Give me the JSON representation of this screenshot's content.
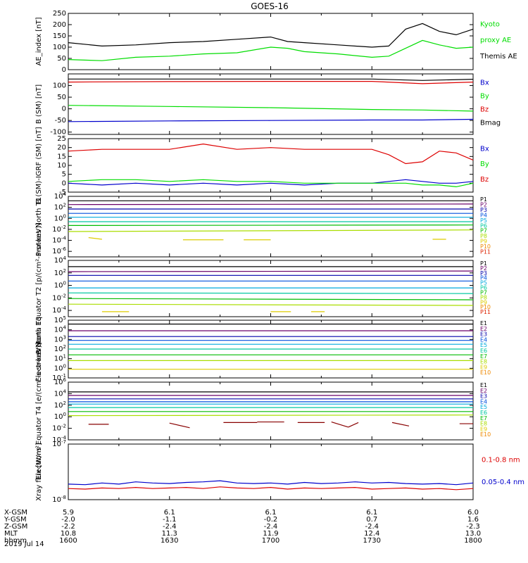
{
  "title": "GOES-16",
  "date_label": "2019 Jul 14",
  "footer": {
    "row_labels": [
      "X-GSM",
      "Y-GSM",
      "Z-GSM",
      "MLT",
      "hhmm"
    ],
    "columns": [
      {
        "X-GSM": "5.9",
        "Y-GSM": "-2.0",
        "Z-GSM": "-2.2",
        "MLT": "10.8",
        "hhmm": "1600"
      },
      {
        "X-GSM": "6.1",
        "Y-GSM": "-1.1",
        "Z-GSM": "-2.4",
        "MLT": "11.3",
        "hhmm": "1630"
      },
      {
        "X-GSM": "6.1",
        "Y-GSM": "-0.2",
        "Z-GSM": "-2.4",
        "MLT": "11.9",
        "hhmm": "1700"
      },
      {
        "X-GSM": "6.1",
        "Y-GSM": "0.7",
        "Z-GSM": "-2.4",
        "MLT": "12.4",
        "hhmm": "1730"
      },
      {
        "X-GSM": "6.0",
        "Y-GSM": "1.6",
        "Z-GSM": "-2.3",
        "MLT": "13.0",
        "hhmm": "1800"
      }
    ]
  },
  "colors": {
    "black": "#000000",
    "green": "#00dd00",
    "blue": "#0000cc",
    "red": "#dd0000",
    "ch": [
      "#000000",
      "#6a006a",
      "#0000aa",
      "#0050dd",
      "#00aadd",
      "#00c8a0",
      "#00bb00",
      "#aadd00",
      "#ddcc00",
      "#ee8800",
      "#dd2200",
      "#aa0000",
      "#880000"
    ]
  },
  "chart_data": [
    {
      "type": "line",
      "ylabel": "AE_index [nT]",
      "ylim": [
        0,
        250
      ],
      "yticks": [
        0,
        50,
        100,
        150,
        200,
        250
      ],
      "ytick_labels": [
        "0",
        "50",
        "100",
        "150",
        "200",
        "250"
      ],
      "x": [
        1600,
        1610,
        1620,
        1630,
        1640,
        1650,
        1700,
        1705,
        1710,
        1720,
        1730,
        1735,
        1740,
        1745,
        1750,
        1755,
        1800
      ],
      "series": [
        {
          "name": "Kyoto proxy AE",
          "color": "#00dd00",
          "values": [
            45,
            40,
            55,
            60,
            70,
            75,
            100,
            95,
            80,
            70,
            55,
            60,
            95,
            130,
            110,
            95,
            100
          ]
        },
        {
          "name": "Themis AE",
          "color": "#000000",
          "values": [
            120,
            105,
            110,
            120,
            125,
            135,
            145,
            125,
            120,
            110,
            100,
            105,
            180,
            205,
            170,
            155,
            180
          ]
        }
      ],
      "legend": [
        {
          "text": "Kyoto",
          "color": "#00dd00"
        },
        {
          "text": "proxy AE",
          "color": "#00dd00"
        },
        {
          "text": "Themis AE",
          "color": "#000000"
        }
      ]
    },
    {
      "type": "line",
      "ylabel": "B (SM) [nT]",
      "ylim": [
        -110,
        150
      ],
      "yticks": [
        -100,
        -50,
        0,
        50,
        100
      ],
      "ytick_labels": [
        "-100",
        "-50",
        "0",
        "50",
        "100"
      ],
      "x": [
        1600,
        1630,
        1700,
        1730,
        1745,
        1800
      ],
      "series": [
        {
          "name": "Bx",
          "color": "#0000cc",
          "values": [
            -55,
            -52,
            -50,
            -48,
            -48,
            -45
          ]
        },
        {
          "name": "By",
          "color": "#00dd00",
          "values": [
            15,
            10,
            5,
            -3,
            -5,
            -10
          ]
        },
        {
          "name": "Bz",
          "color": "#dd0000",
          "values": [
            115,
            117,
            118,
            118,
            108,
            115
          ]
        },
        {
          "name": "Bmag",
          "color": "#000000",
          "values": [
            128,
            128,
            128,
            128,
            122,
            127
          ]
        }
      ],
      "legend": [
        {
          "text": "Bx",
          "color": "#0000cc"
        },
        {
          "text": "By",
          "color": "#00dd00"
        },
        {
          "text": "Bz",
          "color": "#dd0000"
        },
        {
          "text": "Bmag",
          "color": "#000000"
        }
      ]
    },
    {
      "type": "line",
      "ylabel": "B (SM)-IGRF (SM) [nT]",
      "ylim": [
        -5,
        25
      ],
      "yticks": [
        -5,
        0,
        5,
        10,
        15,
        20,
        25
      ],
      "ytick_labels": [
        "-5",
        "0",
        "5",
        "10",
        "15",
        "20",
        "25"
      ],
      "x": [
        1600,
        1610,
        1620,
        1630,
        1640,
        1650,
        1700,
        1710,
        1720,
        1730,
        1735,
        1740,
        1745,
        1750,
        1755,
        1800
      ],
      "series": [
        {
          "name": "Bx",
          "color": "#0000cc",
          "values": [
            0,
            -1,
            0,
            -1,
            0,
            -1,
            0,
            -1,
            0,
            0,
            1,
            2,
            1,
            0,
            0,
            1
          ]
        },
        {
          "name": "By",
          "color": "#00dd00",
          "values": [
            1,
            2,
            2,
            1,
            2,
            1,
            1,
            0,
            0,
            0,
            0,
            0,
            -1,
            -1,
            -2,
            0
          ]
        },
        {
          "name": "Bz",
          "color": "#dd0000",
          "values": [
            18,
            19,
            19,
            19,
            22,
            19,
            20,
            19,
            19,
            19,
            16,
            11,
            12,
            18,
            17,
            13
          ]
        }
      ],
      "legend": [
        {
          "text": "Bx",
          "color": "#0000cc"
        },
        {
          "text": "By",
          "color": "#00dd00"
        },
        {
          "text": "Bz",
          "color": "#dd0000"
        }
      ]
    },
    {
      "type": "line",
      "log": true,
      "ylabel": "Protons North T1",
      "ylim_exp": [
        -7,
        4
      ],
      "tick_exps": [
        4,
        2,
        0,
        -2,
        -4,
        -6
      ],
      "ytick_labels": [
        "10^4",
        "10^2",
        "10^0",
        "10^-2",
        "10^-4",
        "10^-6"
      ],
      "x": [
        1600,
        1800
      ],
      "series": [
        {
          "name": "P1",
          "values": [
            3.2,
            3.2
          ]
        },
        {
          "name": "P2",
          "values": [
            2.5,
            2.6
          ]
        },
        {
          "name": "P3",
          "values": [
            1.7,
            1.7
          ]
        },
        {
          "name": "P4",
          "values": [
            0.9,
            0.9
          ]
        },
        {
          "name": "P5",
          "values": [
            0.2,
            0.2
          ]
        },
        {
          "name": "P6",
          "values": [
            -0.6,
            -0.6
          ]
        },
        {
          "name": "P7",
          "values": [
            -1.3,
            -1.2
          ]
        },
        {
          "name": "P8",
          "values": [
            -2.4,
            -2.1
          ]
        }
      ],
      "segments": [
        {
          "x": [
            1606,
            1610
          ],
          "values": [
            -3.5,
            -3.8
          ],
          "ch": 8
        },
        {
          "x": [
            1634,
            1646
          ],
          "values": [
            -3.9,
            -3.9
          ],
          "ch": 8
        },
        {
          "x": [
            1652,
            1700
          ],
          "values": [
            -3.9,
            -3.9
          ],
          "ch": 8
        },
        {
          "x": [
            1748,
            1752
          ],
          "values": [
            -3.8,
            -3.8
          ],
          "ch": 8
        }
      ],
      "legend": [
        "P1",
        "P2",
        "P3",
        "P4",
        "P5",
        "P6",
        "P7",
        "P8",
        "P9",
        "P10",
        "P11"
      ]
    },
    {
      "type": "line",
      "log": true,
      "ylabel": "Protons Equator T2 [p/(cm²-s-sr-keV)]",
      "ylim_exp": [
        -5,
        4
      ],
      "tick_exps": [
        4,
        2,
        0,
        -2,
        -4
      ],
      "ytick_labels": [
        "10^4",
        "10^2",
        "10^0",
        "10^-2",
        "10^-4"
      ],
      "x": [
        1600,
        1800
      ],
      "series": [
        {
          "name": "P1",
          "values": [
            3.0,
            3.0
          ]
        },
        {
          "name": "P2",
          "values": [
            2.2,
            2.3
          ]
        },
        {
          "name": "P3",
          "values": [
            1.6,
            1.6
          ]
        },
        {
          "name": "P4",
          "values": [
            0.7,
            0.7
          ]
        },
        {
          "name": "P5",
          "values": [
            -0.4,
            -0.4
          ]
        },
        {
          "name": "P6",
          "values": [
            -1.2,
            -1.3
          ]
        },
        {
          "name": "P7",
          "values": [
            -2.1,
            -2.3
          ]
        },
        {
          "name": "P8",
          "values": [
            -3.0,
            -3.2
          ]
        }
      ],
      "segments": [
        {
          "x": [
            1610,
            1618
          ],
          "values": [
            -4.2,
            -4.2
          ],
          "ch": 8
        },
        {
          "x": [
            1660,
            1666
          ],
          "values": [
            -4.2,
            -4.2
          ],
          "ch": 8
        },
        {
          "x": [
            1672,
            1676
          ],
          "values": [
            -4.2,
            -4.2
          ],
          "ch": 8
        }
      ],
      "legend": [
        "P1",
        "P2",
        "P3",
        "P4",
        "P5",
        "P6",
        "P7",
        "P8",
        "P9",
        "P10",
        "P11"
      ]
    },
    {
      "type": "line",
      "log": true,
      "ylabel": "Electrons North T3",
      "ylim_exp": [
        -1,
        5
      ],
      "tick_exps": [
        5,
        4,
        3,
        2,
        1,
        0,
        -1
      ],
      "ytick_labels": [
        "10^5",
        "10^4",
        "10^3",
        "10^2",
        "10^1",
        "10^0",
        "10^-1"
      ],
      "x": [
        1600,
        1800
      ],
      "series": [
        {
          "name": "E1",
          "values": [
            4.6,
            4.6
          ]
        },
        {
          "name": "E2",
          "values": [
            3.9,
            3.9
          ]
        },
        {
          "name": "E3",
          "values": [
            3.3,
            3.3
          ]
        },
        {
          "name": "E4",
          "values": [
            2.9,
            2.9
          ]
        },
        {
          "name": "E5",
          "values": [
            2.5,
            2.5
          ]
        },
        {
          "name": "E6",
          "values": [
            2.0,
            2.0
          ]
        },
        {
          "name": "E7",
          "values": [
            1.4,
            1.4
          ]
        },
        {
          "name": "E8",
          "values": [
            0.8,
            0.8
          ]
        },
        {
          "name": "E9",
          "values": [
            -0.1,
            -0.1
          ]
        }
      ],
      "legend": [
        "E1",
        "E2",
        "E3",
        "E4",
        "E5",
        "E6",
        "E7",
        "E8",
        "E9",
        "E10"
      ]
    },
    {
      "type": "line",
      "log": true,
      "ylabel": "Electrons Equator T4 [e/(cm²-s-sr-keV)]",
      "ylim_exp": [
        -4,
        6
      ],
      "tick_exps": [
        6,
        4,
        2,
        0,
        -2,
        -4
      ],
      "ytick_labels": [
        "10^6",
        "10^4",
        "10^2",
        "10^0",
        "10^-2",
        "10^-4"
      ],
      "x": [
        1600,
        1800
      ],
      "series": [
        {
          "name": "E1",
          "values": [
            4.3,
            4.3
          ]
        },
        {
          "name": "E2",
          "values": [
            3.7,
            3.7
          ]
        },
        {
          "name": "E3",
          "values": [
            3.1,
            3.1
          ]
        },
        {
          "name": "E4",
          "values": [
            2.6,
            2.6
          ]
        },
        {
          "name": "E5",
          "values": [
            2.2,
            2.2
          ]
        },
        {
          "name": "E6",
          "values": [
            1.6,
            1.6
          ]
        },
        {
          "name": "E7",
          "values": [
            0.9,
            0.9
          ]
        },
        {
          "name": "E8",
          "values": [
            0.2,
            0.3
          ]
        }
      ],
      "segments": [
        {
          "x": [
            1606,
            1612
          ],
          "values": [
            -1.3,
            -1.3
          ],
          "ch": 12
        },
        {
          "x": [
            1630,
            1636
          ],
          "values": [
            -1.1,
            -1.9
          ],
          "ch": 12
        },
        {
          "x": [
            1646,
            1656
          ],
          "values": [
            -1.0,
            -1.0
          ],
          "ch": 12
        },
        {
          "x": [
            1656,
            1700
          ],
          "values": [
            -0.9,
            -0.9
          ],
          "ch": 12
        },
        {
          "x": [
            1700,
            1704
          ],
          "values": [
            -0.9,
            -0.9
          ],
          "ch": 12
        },
        {
          "x": [
            1708,
            1716
          ],
          "values": [
            -1.0,
            -1.0
          ],
          "ch": 12
        },
        {
          "x": [
            1718,
            1723
          ],
          "values": [
            -0.9,
            -1.8
          ],
          "ch": 12
        },
        {
          "x": [
            1723,
            1726
          ],
          "values": [
            -1.8,
            -1.0
          ],
          "ch": 12
        },
        {
          "x": [
            1736,
            1741
          ],
          "values": [
            -1.0,
            -1.6
          ],
          "ch": 12
        },
        {
          "x": [
            1756,
            1760
          ],
          "values": [
            -1.2,
            -1.2
          ],
          "ch": 12
        }
      ],
      "legend": [
        "E1",
        "E2",
        "E3",
        "E4",
        "E5",
        "E6",
        "E7",
        "E8",
        "E9",
        "E10"
      ]
    },
    {
      "type": "line",
      "log": true,
      "ylabel": "Xray flux [W/m²]",
      "ylim_exp": [
        -8,
        -7
      ],
      "tick_exps": [
        -7,
        -8
      ],
      "ytick_labels": [
        "10^-7",
        "10^-8"
      ],
      "x": [
        1600,
        1605,
        1610,
        1615,
        1620,
        1625,
        1630,
        1635,
        1640,
        1645,
        1650,
        1655,
        1700,
        1705,
        1710,
        1715,
        1720,
        1725,
        1730,
        1735,
        1740,
        1745,
        1750,
        1755,
        1800
      ],
      "series": [
        {
          "name": "0.1-0.8 nm",
          "color": "#dd0000",
          "values": [
            -7.8,
            -7.81,
            -7.79,
            -7.8,
            -7.78,
            -7.8,
            -7.79,
            -7.78,
            -7.8,
            -7.77,
            -7.79,
            -7.8,
            -7.78,
            -7.81,
            -7.79,
            -7.8,
            -7.79,
            -7.78,
            -7.81,
            -7.8,
            -7.79,
            -7.81,
            -7.8,
            -7.82,
            -7.8
          ]
        },
        {
          "name": "0.05-0.4 nm",
          "color": "#0000cc",
          "values": [
            -7.72,
            -7.73,
            -7.7,
            -7.72,
            -7.68,
            -7.7,
            -7.71,
            -7.69,
            -7.68,
            -7.66,
            -7.7,
            -7.71,
            -7.7,
            -7.72,
            -7.69,
            -7.71,
            -7.7,
            -7.68,
            -7.7,
            -7.69,
            -7.71,
            -7.72,
            -7.71,
            -7.73,
            -7.7
          ]
        }
      ],
      "legend": [
        {
          "text": "0.1-0.8 nm",
          "color": "#dd0000"
        },
        {
          "text": "0.05-0.4 nm",
          "color": "#0000cc"
        }
      ]
    }
  ]
}
